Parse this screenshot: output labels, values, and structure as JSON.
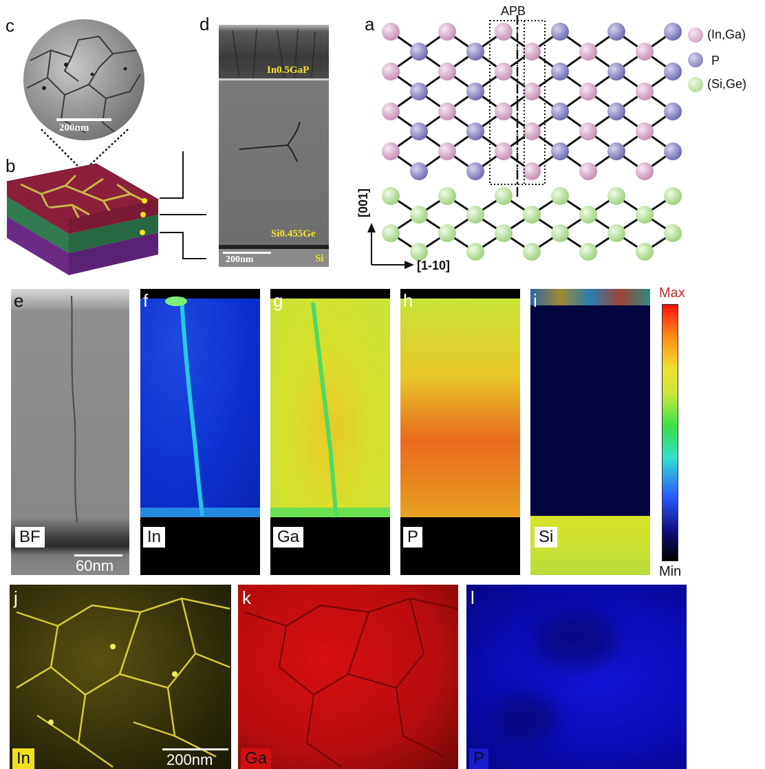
{
  "panels": {
    "a": {
      "letter": "a",
      "boundary_label": "APB",
      "legend": [
        {
          "label": "(In,Ga)",
          "color": "#d8a8c8"
        },
        {
          "label": "P",
          "color": "#8a88c0"
        },
        {
          "label": "(Si,Ge)",
          "color": "#b8e0a0"
        }
      ],
      "axis_vertical": "[001]",
      "axis_horizontal": "[1-10]"
    },
    "b": {
      "letter": "b"
    },
    "c": {
      "letter": "c",
      "scale_bar": "200nm"
    },
    "d": {
      "letter": "d",
      "layer_top": "In0.5GaP",
      "layer_mid": "Si0.455Ge",
      "layer_bottom": "Si",
      "scale_bar": "200nm"
    },
    "e": {
      "letter": "e",
      "tag": "BF",
      "scale_bar": "60nm"
    },
    "f": {
      "letter": "f",
      "tag": "In"
    },
    "g": {
      "letter": "g",
      "tag": "Ga"
    },
    "h": {
      "letter": "h",
      "tag": "P"
    },
    "i": {
      "letter": "i",
      "tag": "Si"
    },
    "colorbar": {
      "max_label": "Max",
      "min_label": "Min"
    },
    "j": {
      "letter": "j",
      "tag": "In",
      "scale_bar": "200nm"
    },
    "k": {
      "letter": "k",
      "tag": "Ga"
    },
    "l": {
      "letter": "l",
      "tag": "P"
    }
  }
}
